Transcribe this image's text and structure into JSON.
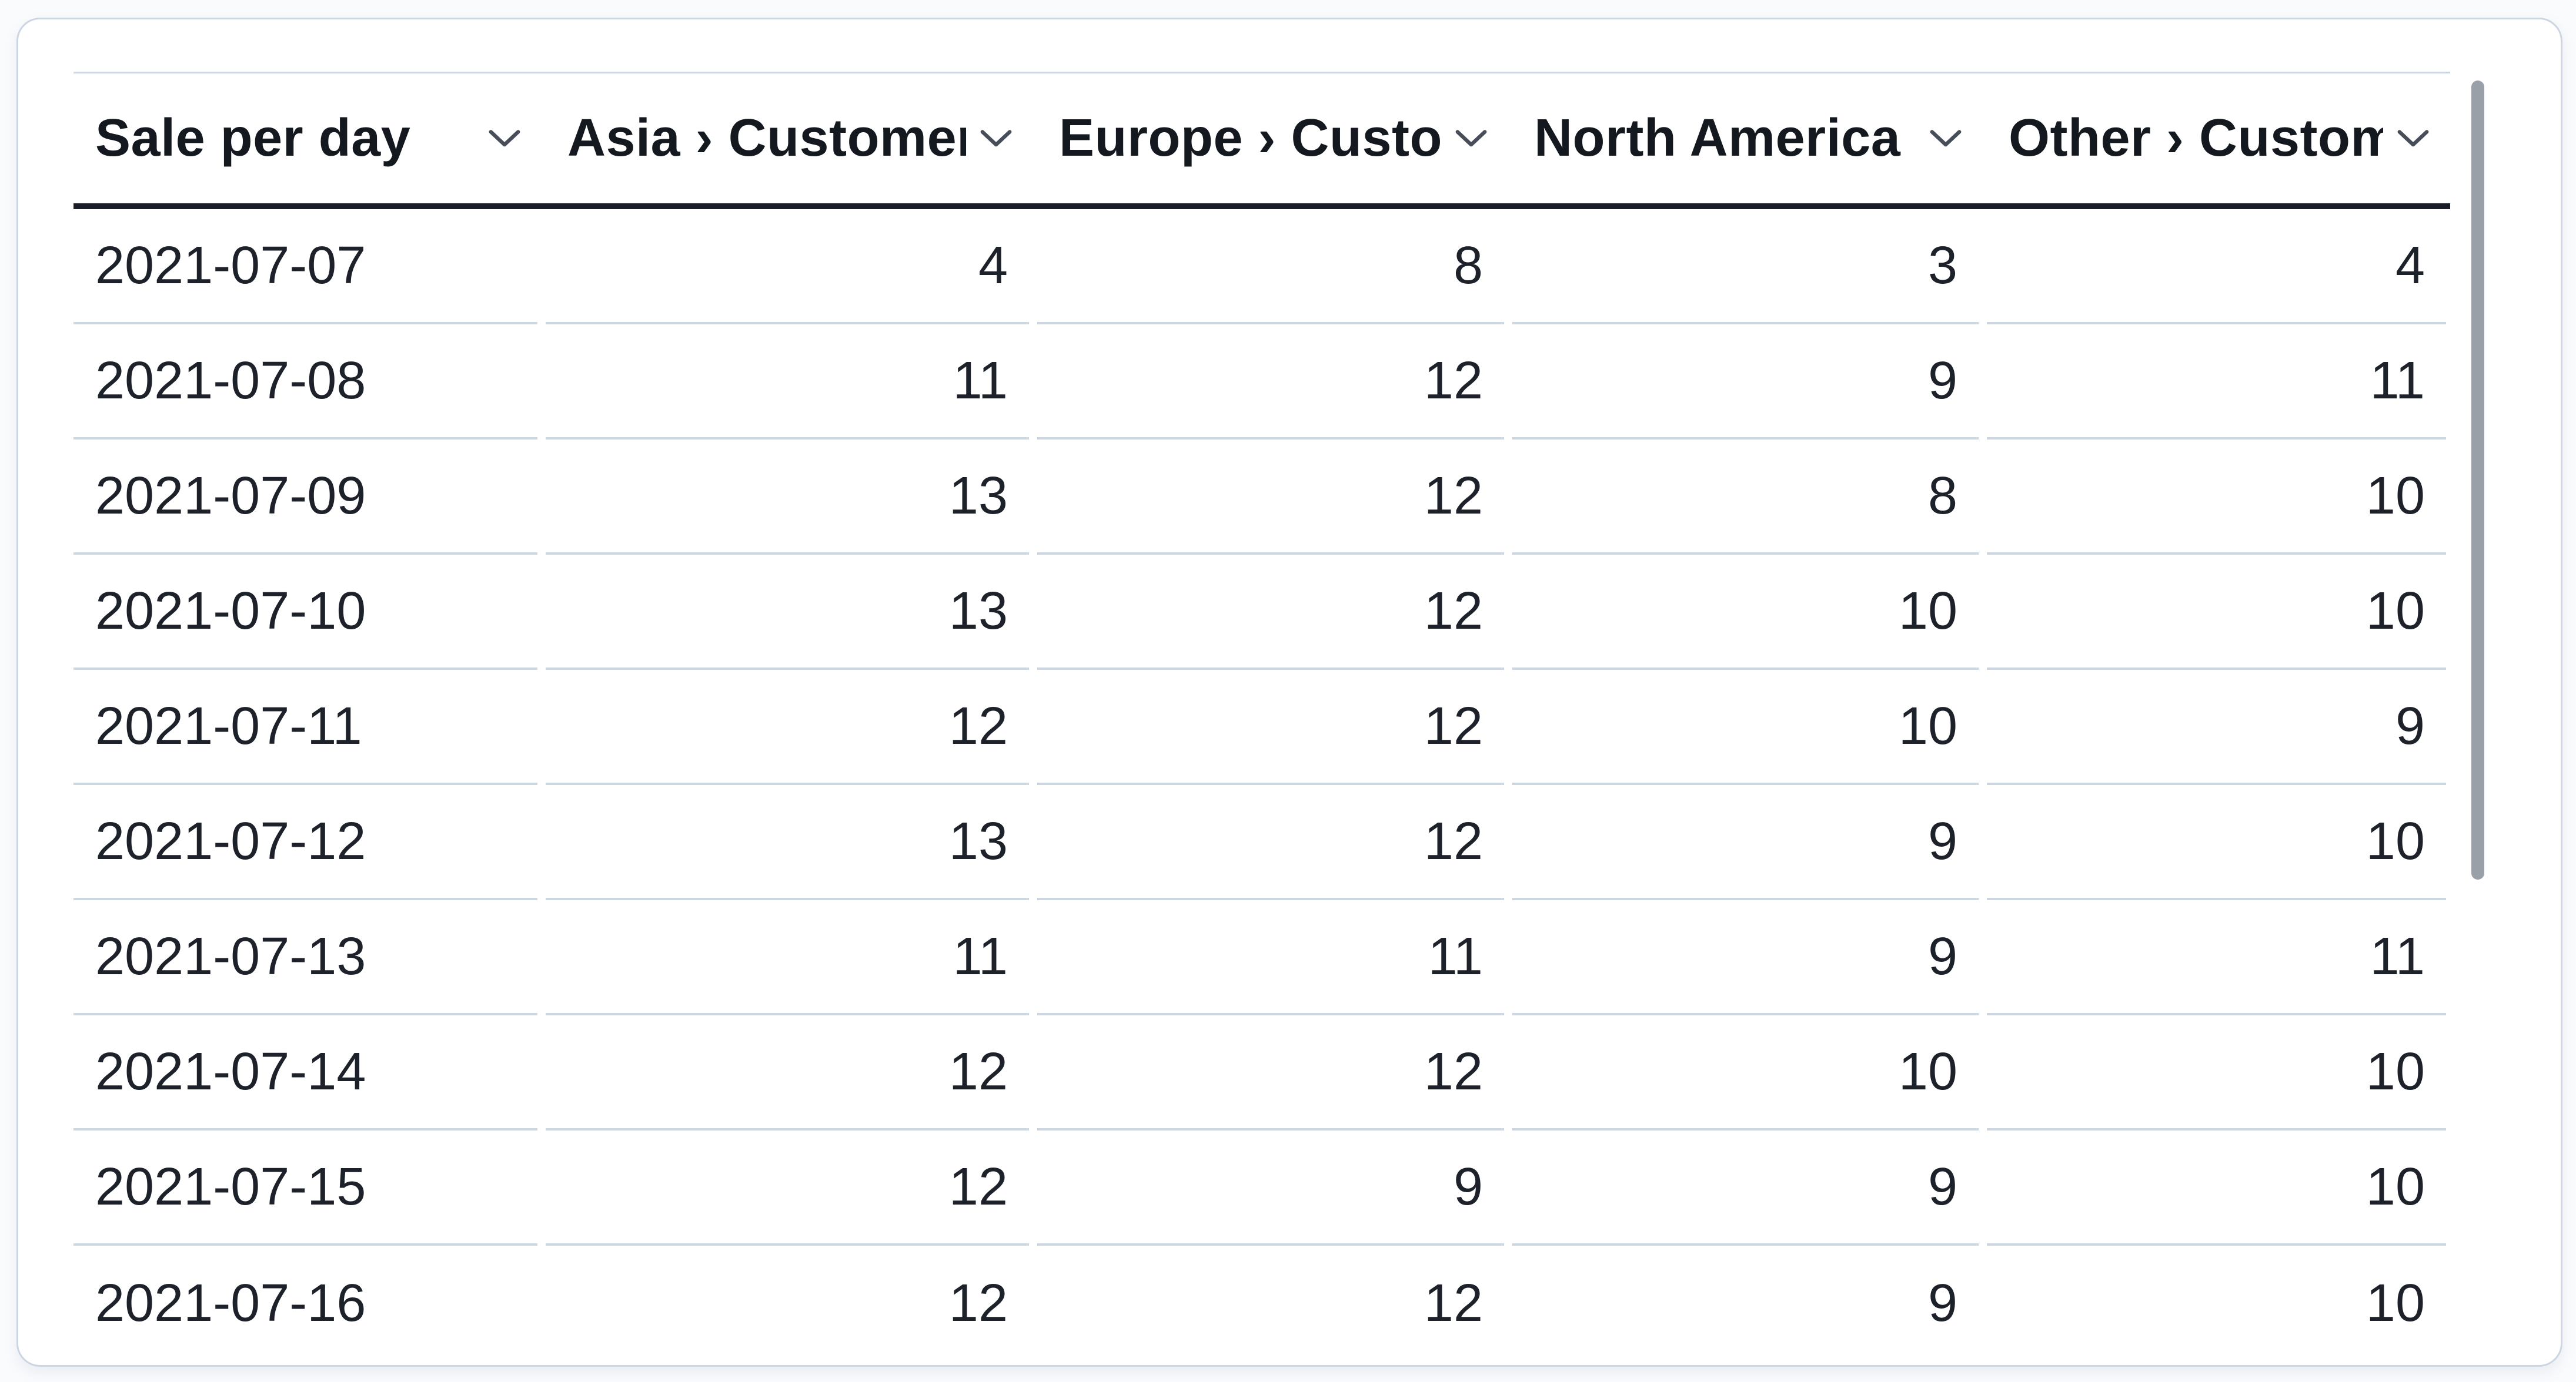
{
  "card": {
    "type": "table-card",
    "background": "#ffffff",
    "border_color": "#ccd6e3"
  },
  "table": {
    "columns": [
      {
        "label": "Sale per day",
        "align": "left"
      },
      {
        "label": "Asia › Customers",
        "align": "right"
      },
      {
        "label": "Europe › Customers",
        "align": "right"
      },
      {
        "label": "North America › Customers",
        "align": "right"
      },
      {
        "label": "Other › Customers",
        "align": "right"
      }
    ],
    "rows": [
      [
        "2021-07-07",
        "4",
        "8",
        "3",
        "4"
      ],
      [
        "2021-07-08",
        "11",
        "12",
        "9",
        "11"
      ],
      [
        "2021-07-09",
        "13",
        "12",
        "8",
        "10"
      ],
      [
        "2021-07-10",
        "13",
        "12",
        "10",
        "10"
      ],
      [
        "2021-07-11",
        "12",
        "12",
        "10",
        "9"
      ],
      [
        "2021-07-12",
        "13",
        "12",
        "9",
        "10"
      ],
      [
        "2021-07-13",
        "11",
        "11",
        "9",
        "11"
      ],
      [
        "2021-07-14",
        "12",
        "12",
        "10",
        "10"
      ],
      [
        "2021-07-15",
        "12",
        "9",
        "9",
        "10"
      ],
      [
        "2021-07-16",
        "12",
        "12",
        "9",
        "10"
      ]
    ]
  },
  "icons": {
    "column_sort": "chevron-down-icon"
  },
  "scrollbar": {
    "orientation": "vertical",
    "thumb_color": "#9aa0a8"
  },
  "colors": {
    "page_background": "#fafbfd",
    "header_text": "#14181f",
    "body_text": "#1d212a",
    "header_underline": "#1a1e26",
    "row_separator": "#ccd6e1",
    "chevron": "#474e59"
  }
}
